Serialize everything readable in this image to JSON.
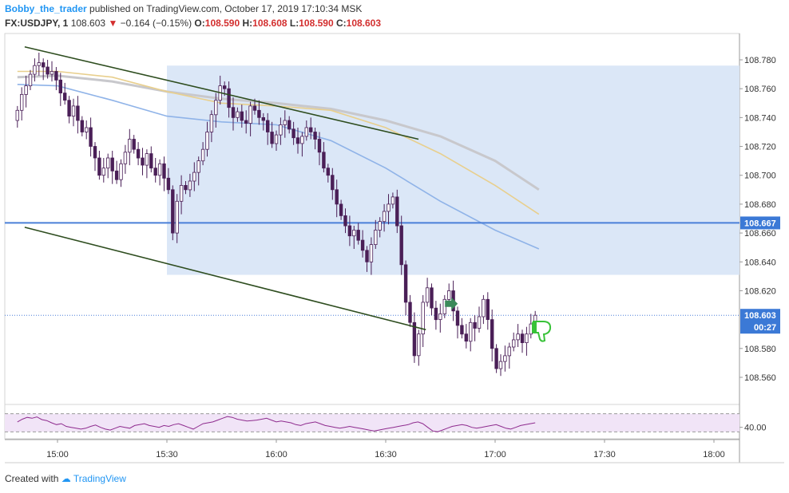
{
  "header": {
    "author": "Bobby_the_trader",
    "published_text": "published on TradingView.com, October 17, 2019 17:10:34 MSK"
  },
  "symbol_line": {
    "symbol": "FX:USDJPY, 1",
    "last": "108.603",
    "change_arrow": "▼",
    "change": "−0.164 (−0.15%)",
    "o_label": "O:",
    "o_value": "108.590",
    "h_label": "H:",
    "h_value": "108.608",
    "l_label": "L:",
    "l_value": "108.590",
    "c_label": "C:",
    "c_value": "108.603"
  },
  "footer": {
    "created_with": "Created with",
    "brand": "TradingView"
  },
  "colors": {
    "up_candle": "#ffffff",
    "down_candle": "#4a1f57",
    "zone_fill": "#dbe7f7",
    "hline": "#4a7fd8",
    "trendline": "#2e4d1f",
    "ma_gray": "#c8c8cc",
    "ma_tan": "#e8cf8d",
    "ma_blue": "#8fb3e8",
    "rsi_line": "#8e2b8e",
    "rsi_band": "#f1e4f7",
    "arrow_green": "#3b8a5a",
    "thumb_green": "#38c238"
  },
  "chart_data": {
    "type": "candlestick",
    "symbol": "FX:USDJPY",
    "timeframe": "1",
    "x_ticks": [
      "15:00",
      "15:30",
      "16:00",
      "16:30",
      "17:00",
      "17:30",
      "18:00"
    ],
    "y_ticks": [
      "108.780",
      "108.760",
      "108.740",
      "108.720",
      "108.700",
      "108.680",
      "108.660",
      "108.640",
      "108.620",
      "108.580",
      "108.560"
    ],
    "ylim": [
      108.546,
      108.791
    ],
    "price_labels": {
      "hline": "108.667",
      "last": "108.603",
      "countdown": "00:27"
    },
    "hline_level": 108.667,
    "zone": {
      "x_start": "15:30",
      "x_end": "18:07",
      "y_low": 108.631,
      "y_high": 108.776
    },
    "trendlines": [
      {
        "x1": "14:51",
        "y1": 108.789,
        "x2": "16:39",
        "y2": 108.725
      },
      {
        "x1": "14:51",
        "y1": 108.664,
        "x2": "16:41",
        "y2": 108.593
      }
    ],
    "rsi": {
      "tick": "40.00",
      "band": [
        30,
        70
      ],
      "ylim": [
        20,
        80
      ]
    }
  }
}
